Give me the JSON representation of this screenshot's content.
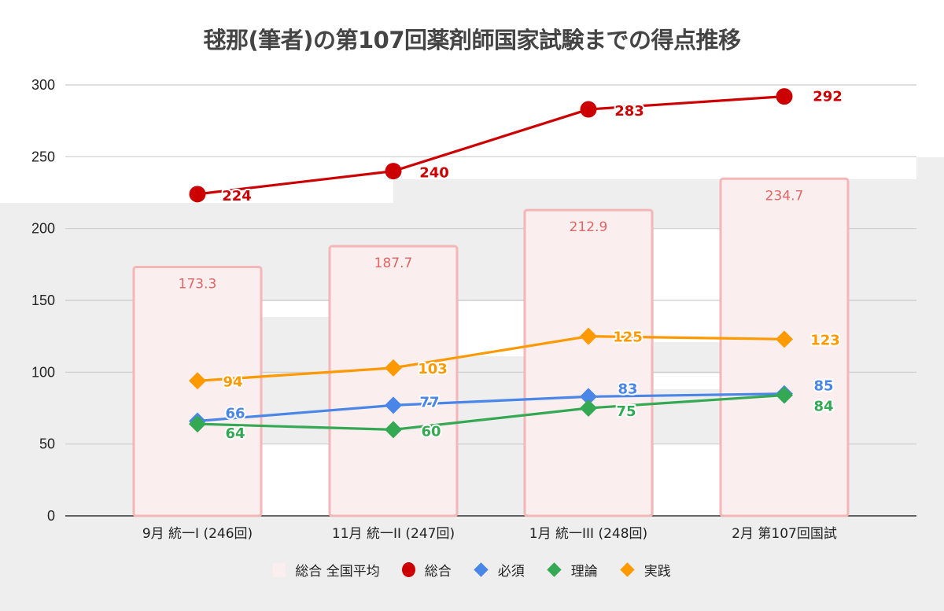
{
  "chart_data": {
    "type": "bar+line",
    "title": "毬那(筆者)の第107回薬剤師国家試験までの得点推移",
    "xlabel": "",
    "ylabel": "",
    "ylim": [
      0,
      300
    ],
    "yticks": [
      0,
      50,
      100,
      150,
      200,
      250,
      300
    ],
    "grid": true,
    "legend_position": "bottom",
    "categories": [
      "9月 統一I (246回)",
      "11月 統一II (247回)",
      "1月 統一III (248回)",
      "2月 第107回国試"
    ],
    "bars": {
      "name": "総合 全国平均",
      "color": "#fbeeee",
      "border_color": "#f4b6b6",
      "label_color": "#e06666",
      "values": [
        173.3,
        187.7,
        212.9,
        234.7
      ],
      "labels": [
        "173.3",
        "187.7",
        "212.9",
        "234.7"
      ]
    },
    "series": [
      {
        "name": "総合",
        "marker": "circle",
        "color": "#cc0000",
        "values": [
          224,
          240,
          283,
          292
        ]
      },
      {
        "name": "必須",
        "marker": "diamond",
        "color": "#4a86e8",
        "values": [
          66,
          77,
          83,
          85
        ]
      },
      {
        "name": "理論",
        "marker": "diamond",
        "color": "#34a853",
        "values": [
          64,
          60,
          75,
          84
        ]
      },
      {
        "name": "実践",
        "marker": "diamond",
        "color": "#ff9900",
        "values": [
          94,
          103,
          125,
          123
        ]
      }
    ]
  }
}
